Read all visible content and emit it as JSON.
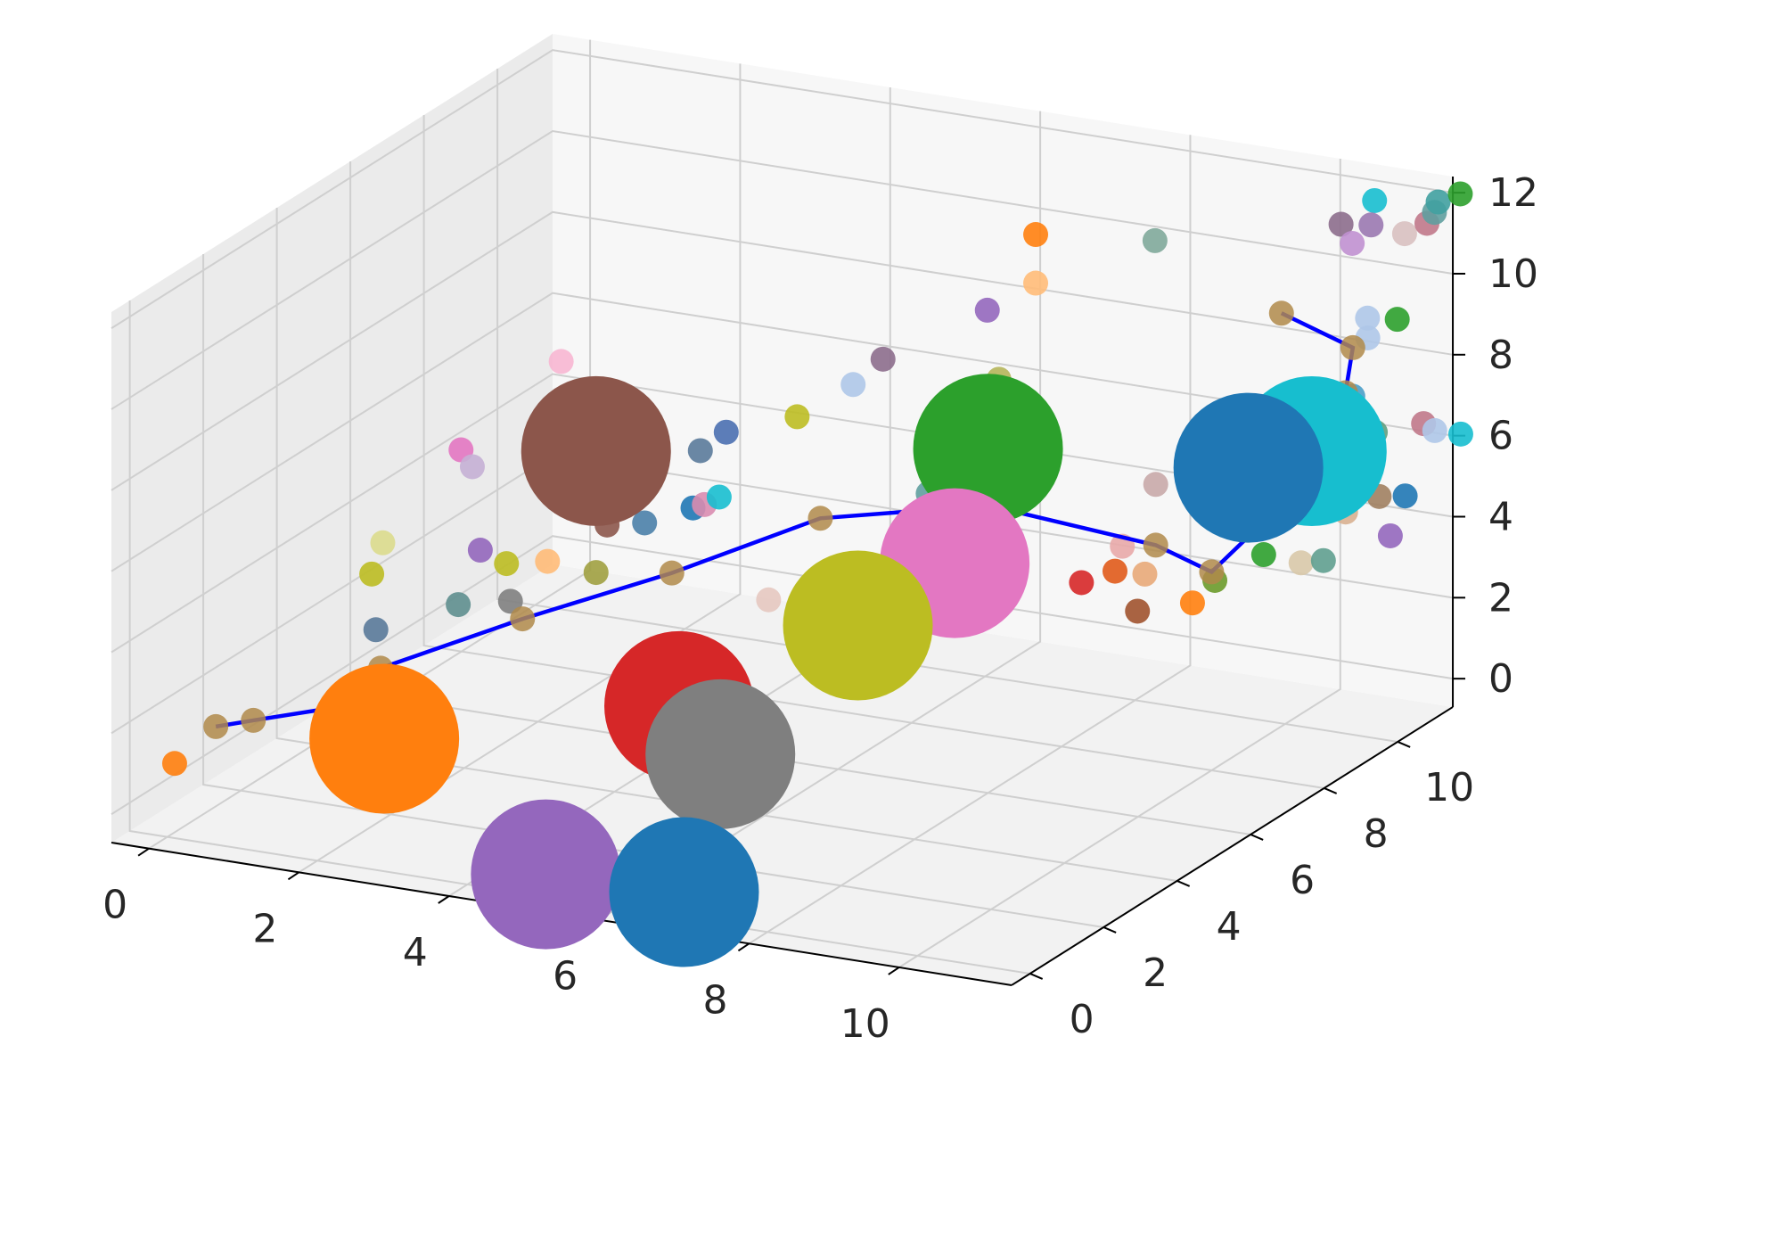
{
  "chart_data": {
    "type": "scatter",
    "projection": "3d",
    "title": "",
    "xlabel": "",
    "ylabel": "",
    "zlabel": "",
    "grid": true,
    "xlim": [
      -0.5,
      11.5
    ],
    "ylim": [
      -0.5,
      11.5
    ],
    "zlim": [
      -0.7,
      12.4
    ],
    "xticks": [
      0,
      2,
      4,
      6,
      8,
      10
    ],
    "yticks": [
      0,
      2,
      4,
      6,
      8,
      10
    ],
    "zticks": [
      0,
      2,
      4,
      6,
      8,
      10,
      12
    ],
    "large_markers": [
      {
        "x": 4.0,
        "y": 3.5,
        "z": 8.0,
        "color": "#8c564b"
      },
      {
        "x": 2.5,
        "y": 0.8,
        "z": 2.0,
        "color": "#ff7f0e"
      },
      {
        "x": 8.0,
        "y": 6.0,
        "z": 7.8,
        "color": "#2ca02c"
      },
      {
        "x": 10.6,
        "y": 9.5,
        "z": 6.5,
        "color": "#17becf"
      },
      {
        "x": 10.0,
        "y": 9.0,
        "z": 6.2,
        "color": "#1f77b4"
      },
      {
        "x": 7.8,
        "y": 5.5,
        "z": 5.2,
        "color": "#e377c2"
      },
      {
        "x": 7.0,
        "y": 4.5,
        "z": 4.0,
        "color": "#bcbd22"
      },
      {
        "x": 5.5,
        "y": 2.7,
        "z": 2.6,
        "color": "#d62728"
      },
      {
        "x": 6.0,
        "y": 2.8,
        "z": 1.5,
        "color": "#7f7f7f"
      },
      {
        "x": 4.8,
        "y": 0.5,
        "z": -0.5,
        "color": "#9467bd"
      },
      {
        "x": 6.3,
        "y": 1.2,
        "z": -0.9,
        "color": "#1f77b4"
      }
    ],
    "line_series": {
      "color": "#0000ff",
      "points": [
        {
          "x": 0.5,
          "y": 0.3,
          "z": 2.0
        },
        {
          "x": 1.0,
          "y": 0.3,
          "z": 2.3
        },
        {
          "x": 2.0,
          "y": 0.5,
          "z": 2.8
        },
        {
          "x": 2.5,
          "y": 0.7,
          "z": 3.8
        },
        {
          "x": 4.0,
          "y": 1.5,
          "z": 5.0
        },
        {
          "x": 5.5,
          "y": 2.5,
          "z": 6.0
        },
        {
          "x": 6.5,
          "y": 4.5,
          "z": 6.5
        },
        {
          "x": 8.0,
          "y": 6.0,
          "z": 6.4
        },
        {
          "x": 9.5,
          "y": 7.5,
          "z": 5.0
        },
        {
          "x": 10.0,
          "y": 8.0,
          "z": 4.2
        },
        {
          "x": 10.3,
          "y": 8.6,
          "z": 5.0
        },
        {
          "x": 10.8,
          "y": 9.5,
          "z": 7.0
        },
        {
          "x": 11.0,
          "y": 9.6,
          "z": 8.0
        },
        {
          "x": 11.0,
          "y": 9.8,
          "z": 9.0
        },
        {
          "x": 10.0,
          "y": 9.9,
          "z": 9.5
        }
      ]
    },
    "small_markers": [
      {
        "x": 0.0,
        "y": 0.2,
        "z": 1.0,
        "color": "#ff7f0e"
      },
      {
        "x": 1.5,
        "y": 1.5,
        "z": 1.2,
        "color": "#f7b6d2"
      },
      {
        "x": 1.5,
        "y": 2.5,
        "z": 4.8,
        "color": "#bcbd22"
      },
      {
        "x": 1.5,
        "y": 2.8,
        "z": 5.4,
        "color": "#dbdb8d"
      },
      {
        "x": 1.8,
        "y": 2.0,
        "z": 3.8,
        "color": "#5a7a9a"
      },
      {
        "x": 2.2,
        "y": 3.5,
        "z": 7.5,
        "color": "#e377c2"
      },
      {
        "x": 2.4,
        "y": 3.4,
        "z": 7.2,
        "color": "#c5b0d5"
      },
      {
        "x": 2.8,
        "y": 5.0,
        "z": 9.0,
        "color": "#f7b6d2"
      },
      {
        "x": 2.8,
        "y": 2.8,
        "z": 5.6,
        "color": "#9467bd"
      },
      {
        "x": 2.8,
        "y": 2.2,
        "z": 4.6,
        "color": "#5f8f8f"
      },
      {
        "x": 3.1,
        "y": 2.9,
        "z": 5.3,
        "color": "#bcbd22"
      },
      {
        "x": 3.3,
        "y": 2.6,
        "z": 4.6,
        "color": "#7f7f7f"
      },
      {
        "x": 3.5,
        "y": 3.2,
        "z": 5.3,
        "color": "#ffbb78"
      },
      {
        "x": 2.5,
        "y": 0.5,
        "z": 0.8,
        "color": "#a8554f"
      },
      {
        "x": 3.0,
        "y": 0.8,
        "z": 2.1,
        "color": "#c49c94"
      },
      {
        "x": 4.0,
        "y": 3.8,
        "z": 6.0,
        "color": "#8c564b"
      },
      {
        "x": 4.0,
        "y": 3.5,
        "z": 5.0,
        "color": "#a0a040"
      },
      {
        "x": 4.2,
        "y": 4.5,
        "z": 7.6,
        "color": "#2e6fa0"
      },
      {
        "x": 4.5,
        "y": 3.8,
        "z": 6.2,
        "color": "#4a7fa8"
      },
      {
        "x": 4.9,
        "y": 4.3,
        "z": 6.4,
        "color": "#1f77b4"
      },
      {
        "x": 4.9,
        "y": 4.5,
        "z": 7.7,
        "color": "#5a7a9a"
      },
      {
        "x": 5.0,
        "y": 5.0,
        "z": 7.9,
        "color": "#4a6fb0"
      },
      {
        "x": 5.1,
        "y": 4.2,
        "z": 6.6,
        "color": "#d98cb0"
      },
      {
        "x": 5.2,
        "y": 4.4,
        "z": 6.7,
        "color": "#17becf"
      },
      {
        "x": 5.7,
        "y": 5.5,
        "z": 8.2,
        "color": "#bcbd22"
      },
      {
        "x": 5.2,
        "y": 2.8,
        "z": 3.2,
        "color": "#c49c94"
      },
      {
        "x": 5.5,
        "y": 2.8,
        "z": 2.8,
        "color": "#d62728"
      },
      {
        "x": 6.3,
        "y": 3.5,
        "z": 5.0,
        "color": "#e6c8c0"
      },
      {
        "x": 6.3,
        "y": 5.8,
        "z": 9.0,
        "color": "#aec7e8"
      },
      {
        "x": 6.6,
        "y": 6.0,
        "z": 9.6,
        "color": "#8c6d8c"
      },
      {
        "x": 7.3,
        "y": 6.0,
        "z": 7.0,
        "color": "#d8c8c0"
      },
      {
        "x": 7.3,
        "y": 5.8,
        "z": 6.6,
        "color": "#5f9f9f"
      },
      {
        "x": 7.5,
        "y": 7.0,
        "z": 10.5,
        "color": "#9467bd"
      },
      {
        "x": 7.9,
        "y": 7.5,
        "z": 12.2,
        "color": "#ff7f0e"
      },
      {
        "x": 7.9,
        "y": 7.5,
        "z": 11.0,
        "color": "#ffbb78"
      },
      {
        "x": 7.9,
        "y": 6.5,
        "z": 9.2,
        "color": "#b5b55a"
      },
      {
        "x": 6.8,
        "y": 2.5,
        "z": 1.8,
        "color": "#d62728"
      },
      {
        "x": 7.5,
        "y": 4.0,
        "z": 4.2,
        "color": "#1f77b4"
      },
      {
        "x": 7.7,
        "y": 4.5,
        "z": 3.8,
        "color": "#4a7fa8"
      },
      {
        "x": 9.0,
        "y": 8.5,
        "z": 11.8,
        "color": "#7fa89a"
      },
      {
        "x": 9.3,
        "y": 7.0,
        "z": 5.2,
        "color": "#e8a8a8"
      },
      {
        "x": 9.5,
        "y": 7.5,
        "z": 6.5,
        "color": "#c8a8a8"
      },
      {
        "x": 9.0,
        "y": 6.5,
        "z": 4.5,
        "color": "#d62728"
      },
      {
        "x": 9.3,
        "y": 6.8,
        "z": 4.7,
        "color": "#e05a1a"
      },
      {
        "x": 9.6,
        "y": 7.0,
        "z": 4.6,
        "color": "#e8a878"
      },
      {
        "x": 9.6,
        "y": 6.8,
        "z": 3.8,
        "color": "#a0522d"
      },
      {
        "x": 9.5,
        "y": 8.5,
        "z": 3.0,
        "color": "#ff7f0e"
      },
      {
        "x": 9.7,
        "y": 8.7,
        "z": 3.5,
        "color": "#6a9a2a"
      },
      {
        "x": 10.5,
        "y": 10.5,
        "z": 11.5,
        "color": "#8c6d8c"
      },
      {
        "x": 10.6,
        "y": 10.6,
        "z": 11.0,
        "color": "#c090d0"
      },
      {
        "x": 10.8,
        "y": 10.8,
        "z": 12.0,
        "color": "#17becf"
      },
      {
        "x": 10.9,
        "y": 10.5,
        "z": 11.6,
        "color": "#9a78b0"
      },
      {
        "x": 11.0,
        "y": 10.2,
        "z": 9.5,
        "color": "#aec7e8"
      },
      {
        "x": 11.0,
        "y": 9.8,
        "z": 7.8,
        "color": "#4a9fc8"
      },
      {
        "x": 10.9,
        "y": 9.4,
        "z": 6.6,
        "color": "#b58a6a"
      },
      {
        "x": 11.2,
        "y": 10.8,
        "z": 11.3,
        "color": "#d8c0c0"
      },
      {
        "x": 11.2,
        "y": 10.6,
        "z": 9.3,
        "color": "#2ca02c"
      },
      {
        "x": 11.4,
        "y": 11.0,
        "z": 11.5,
        "color": "#c0788a"
      },
      {
        "x": 11.5,
        "y": 11.0,
        "z": 11.8,
        "color": "#5f9f9f"
      },
      {
        "x": 11.5,
        "y": 11.1,
        "z": 12.0,
        "color": "#40a0a0"
      },
      {
        "x": 11.6,
        "y": 11.5,
        "z": 12.0,
        "color": "#2ca02c"
      },
      {
        "x": 11.2,
        "y": 9.8,
        "z": 9.3,
        "color": "#aec7e8"
      },
      {
        "x": 10.8,
        "y": 8.5,
        "z": 5.6,
        "color": "#7070c0"
      },
      {
        "x": 10.4,
        "y": 8.6,
        "z": 4.4,
        "color": "#2ca02c"
      },
      {
        "x": 10.8,
        "y": 8.8,
        "z": 4.2,
        "color": "#d8c8a8"
      },
      {
        "x": 11.0,
        "y": 9.0,
        "z": 4.2,
        "color": "#5f9f8f"
      },
      {
        "x": 11.1,
        "y": 9.4,
        "z": 5.2,
        "color": "#d8b090"
      },
      {
        "x": 11.4,
        "y": 9.7,
        "z": 5.5,
        "color": "#a08060"
      },
      {
        "x": 11.3,
        "y": 9.8,
        "z": 7.0,
        "color": "#5f9f7f"
      },
      {
        "x": 11.5,
        "y": 9.8,
        "z": 4.5,
        "color": "#9467bd"
      },
      {
        "x": 11.6,
        "y": 10.0,
        "z": 5.4,
        "color": "#1f77b4"
      },
      {
        "x": 11.6,
        "y": 10.5,
        "z": 6.9,
        "color": "#c0788a"
      },
      {
        "x": 11.7,
        "y": 10.6,
        "z": 6.7,
        "color": "#aec7e8"
      },
      {
        "x": 11.9,
        "y": 10.9,
        "z": 6.5,
        "color": "#17becf"
      }
    ]
  }
}
